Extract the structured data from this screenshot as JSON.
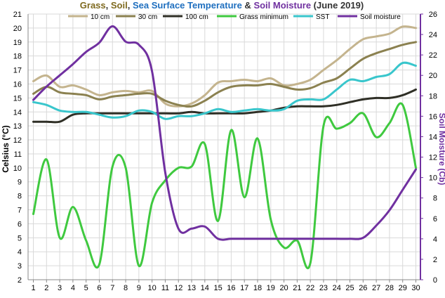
{
  "chart_data": {
    "type": "line",
    "title": {
      "segments": [
        {
          "text": "Grass",
          "color": "#7f6a1f"
        },
        {
          "text": ", ",
          "color": "#333333"
        },
        {
          "text": "Soil",
          "color": "#7f6a1f"
        },
        {
          "text": ", ",
          "color": "#333333"
        },
        {
          "text": "Sea Surface Temperature",
          "color": "#1f6fbf"
        },
        {
          "text": " & ",
          "color": "#333333"
        },
        {
          "text": "Soil Moisture",
          "color": "#7030a0"
        },
        {
          "text": " (June 2019)",
          "color": "#333333"
        }
      ]
    },
    "ylabel": "Celsius (°C)",
    "y2label": "Soil Moisture (Cb)",
    "y2label_color": "#7030a0",
    "ylim": [
      2,
      21
    ],
    "y2lim": [
      0,
      26
    ],
    "yticks": [
      "2",
      "3",
      "4",
      "5",
      "6",
      "7",
      "8",
      "9",
      "10",
      "11",
      "12",
      "13",
      "14",
      "15",
      "16",
      "17",
      "18",
      "19",
      "20",
      "21"
    ],
    "y2ticks": [
      "0",
      "2",
      "4",
      "6",
      "8",
      "10",
      "12",
      "14",
      "16",
      "18",
      "20",
      "22",
      "24",
      "26"
    ],
    "x": [
      "1",
      "2",
      "3",
      "4",
      "5",
      "6",
      "7",
      "8",
      "9",
      "10",
      "11",
      "12",
      "13",
      "14",
      "15",
      "16",
      "17",
      "18",
      "19",
      "20",
      "21",
      "22",
      "23",
      "24",
      "25",
      "26",
      "27",
      "28",
      "29",
      "30"
    ],
    "grid": true,
    "legend_position": "top",
    "series": [
      {
        "name": "10 cm",
        "color": "#c4b48e",
        "axis": "left",
        "values": [
          16.2,
          16.6,
          15.8,
          15.9,
          15.6,
          15.2,
          15.4,
          15.5,
          15.4,
          15.5,
          14.6,
          14.4,
          14.6,
          15.2,
          16.1,
          16.2,
          16.3,
          16.2,
          16.4,
          15.9,
          16.0,
          16.3,
          17.0,
          17.7,
          18.5,
          19.2,
          19.4,
          19.6,
          20.1,
          20.0
        ]
      },
      {
        "name": "30 cm",
        "color": "#8b8150",
        "axis": "left",
        "values": [
          15.3,
          15.8,
          15.4,
          15.3,
          15.2,
          14.9,
          15.1,
          15.2,
          15.3,
          15.3,
          14.8,
          14.5,
          14.4,
          14.8,
          15.4,
          15.8,
          15.9,
          15.9,
          16.0,
          15.8,
          15.6,
          15.7,
          16.1,
          16.4,
          17.1,
          17.8,
          18.2,
          18.5,
          18.8,
          19.0
        ]
      },
      {
        "name": "100 cm",
        "color": "#2f2f26",
        "axis": "left",
        "values": [
          13.3,
          13.3,
          13.3,
          13.8,
          13.9,
          13.9,
          13.9,
          13.9,
          13.9,
          13.9,
          13.9,
          13.9,
          14.0,
          13.9,
          13.9,
          13.9,
          13.9,
          14.0,
          14.1,
          14.3,
          14.4,
          14.4,
          14.4,
          14.5,
          14.7,
          14.9,
          15.0,
          15.0,
          15.2,
          15.6
        ]
      },
      {
        "name": "Grass minimum",
        "color": "#3fc93f",
        "axis": "left",
        "values": [
          6.7,
          10.6,
          5.0,
          7.2,
          4.8,
          3.1,
          10.1,
          10.0,
          3.0,
          7.5,
          9.1,
          10.0,
          10.1,
          11.7,
          6.2,
          12.7,
          7.9,
          12.1,
          6.3,
          4.3,
          4.8,
          3.2,
          13.0,
          12.8,
          13.2,
          13.9,
          12.2,
          13.2,
          14.5,
          10.0
        ]
      },
      {
        "name": "SST",
        "color": "#39c6cc",
        "axis": "left",
        "values": [
          14.7,
          14.5,
          14.1,
          14.0,
          14.0,
          13.8,
          13.6,
          13.7,
          14.1,
          14.0,
          13.5,
          13.7,
          13.7,
          13.9,
          14.2,
          14.0,
          14.1,
          14.2,
          14.1,
          14.2,
          14.8,
          14.9,
          14.9,
          15.6,
          16.3,
          16.2,
          16.5,
          16.7,
          17.5,
          17.3
        ]
      },
      {
        "name": "Soil moisture",
        "color": "#7030a0",
        "axis": "right",
        "values": [
          17.6,
          18.9,
          20.0,
          21.1,
          22.3,
          23.2,
          24.8,
          23.3,
          23.0,
          20.4,
          10.5,
          5.0,
          5.0,
          5.2,
          4.0,
          4.0,
          4.0,
          4.0,
          4.0,
          4.0,
          4.0,
          4.0,
          4.0,
          4.0,
          4.0,
          4.1,
          5.3,
          6.8,
          8.8,
          10.8
        ]
      }
    ]
  }
}
